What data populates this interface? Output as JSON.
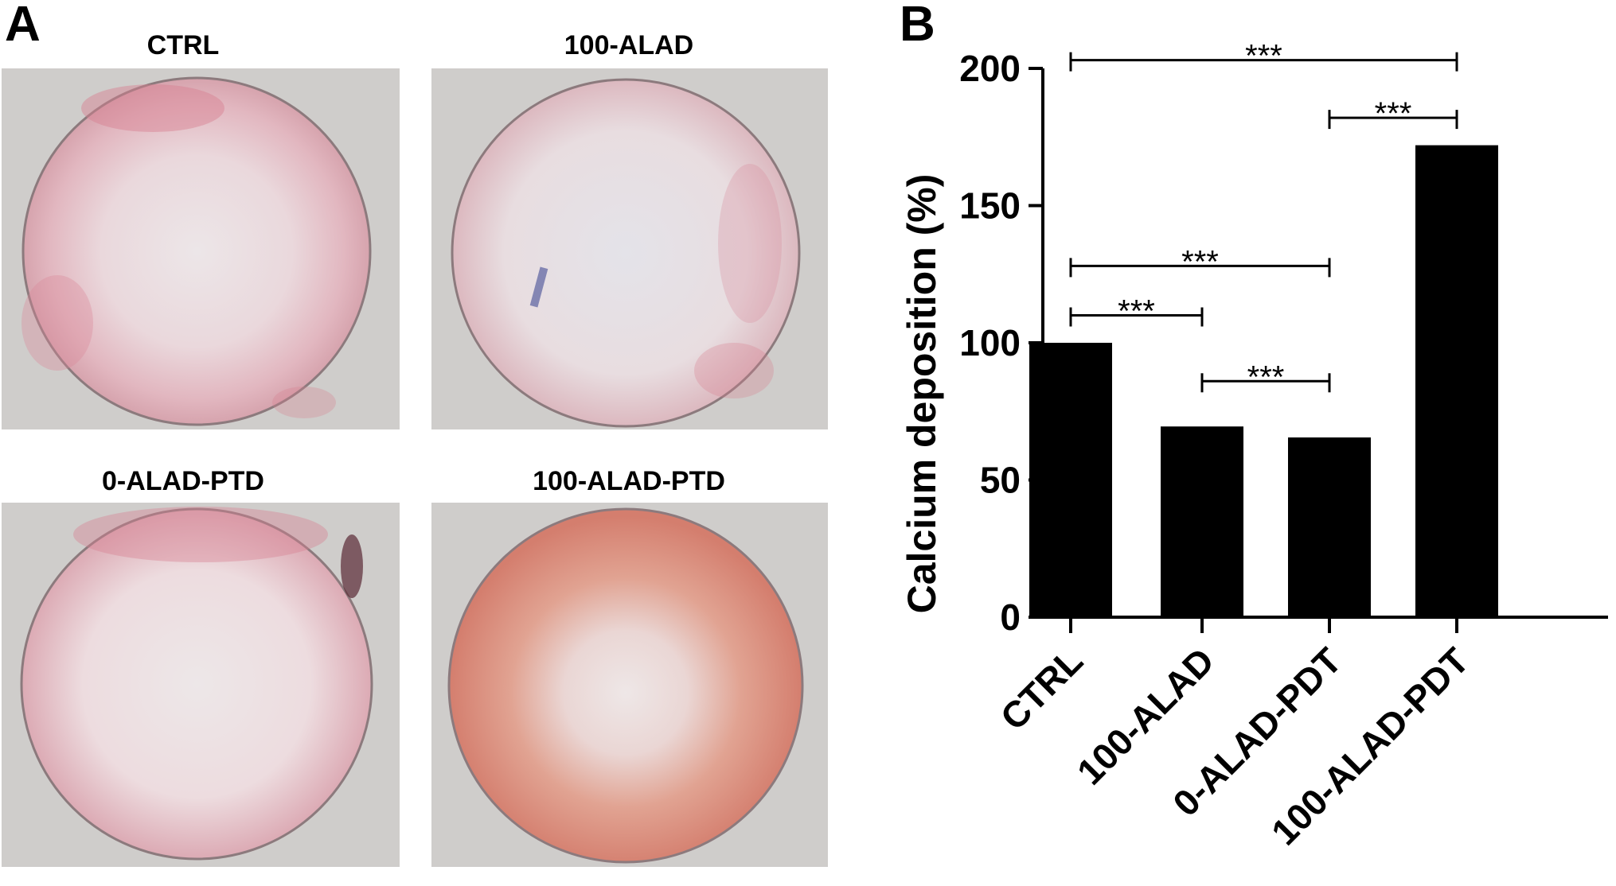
{
  "panels": {
    "a_letter": "A",
    "b_letter": "B"
  },
  "wells": [
    {
      "label": "CTRL",
      "stain": "light"
    },
    {
      "label": "100-ALAD",
      "stain": "faint"
    },
    {
      "label": "0-ALAD-PTD",
      "stain": "light"
    },
    {
      "label": "100-ALAD-PTD",
      "stain": "heavy"
    }
  ],
  "colors": {
    "bar": "#000000",
    "photo_bg": "#cfcdcb",
    "stain_pink": "#d9788a",
    "stain_orange": "#d98a6a"
  },
  "chart_data": {
    "type": "bar",
    "categories": [
      "CTRL",
      "100-ALAD",
      "0-ALAD-PDT",
      "100-ALAD-PDT"
    ],
    "values": [
      100,
      69.5,
      65.5,
      172
    ],
    "ylabel": "Calcium deposition (%)",
    "ylim": [
      0,
      200
    ],
    "yticks": [
      0,
      50,
      100,
      150,
      200
    ],
    "grid": false,
    "significance": [
      {
        "from": 0,
        "to": 3,
        "y": 203,
        "label": "***"
      },
      {
        "from": 2,
        "to": 3,
        "y": 182,
        "label": "***"
      },
      {
        "from": 0,
        "to": 2,
        "y": 128,
        "label": "***"
      },
      {
        "from": 0,
        "to": 1,
        "y": 110,
        "label": "***"
      },
      {
        "from": 1,
        "to": 2,
        "y": 86,
        "label": "***"
      }
    ]
  }
}
